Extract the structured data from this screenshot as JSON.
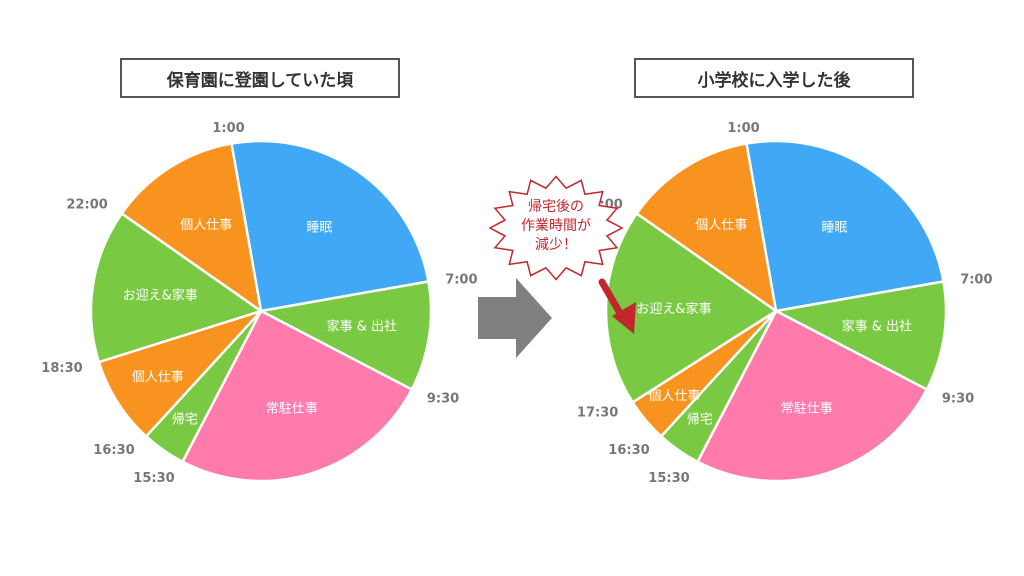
{
  "chart_data": [
    {
      "type": "pie",
      "title": "保育園に登園していた頃",
      "slices": [
        {
          "label": "睡眠",
          "start": "1:00",
          "end": "7:00",
          "hours": 6,
          "color": "#40A8F5"
        },
        {
          "label": "家事 & 出社",
          "start": "7:00",
          "end": "9:30",
          "hours": 2.5,
          "color": "#7AC943"
        },
        {
          "label": "常駐仕事",
          "start": "9:30",
          "end": "15:30",
          "hours": 6,
          "color": "#FF7BAC"
        },
        {
          "label": "帰宅",
          "start": "15:30",
          "end": "16:30",
          "hours": 1,
          "color": "#7AC943"
        },
        {
          "label": "個人仕事",
          "start": "16:30",
          "end": "18:30",
          "hours": 2,
          "color": "#F7931E"
        },
        {
          "label": "お迎え&家事",
          "start": "18:30",
          "end": "22:00",
          "hours": 3.5,
          "color": "#7AC943"
        },
        {
          "label": "個人仕事",
          "start": "22:00",
          "end": "1:00",
          "hours": 3,
          "color": "#F7931E"
        }
      ],
      "time_labels": [
        "1:00",
        "7:00",
        "9:30",
        "15:30",
        "16:30",
        "18:30",
        "22:00"
      ]
    },
    {
      "type": "pie",
      "title": "小学校に入学した後",
      "slices": [
        {
          "label": "睡眠",
          "start": "1:00",
          "end": "7:00",
          "hours": 6,
          "color": "#40A8F5"
        },
        {
          "label": "家事 & 出社",
          "start": "7:00",
          "end": "9:30",
          "hours": 2.5,
          "color": "#7AC943"
        },
        {
          "label": "常駐仕事",
          "start": "9:30",
          "end": "15:30",
          "hours": 6,
          "color": "#FF7BAC"
        },
        {
          "label": "帰宅",
          "start": "15:30",
          "end": "16:30",
          "hours": 1,
          "color": "#7AC943"
        },
        {
          "label": "個人仕事",
          "start": "16:30",
          "end": "17:30",
          "hours": 1,
          "color": "#F7931E"
        },
        {
          "label": "お迎え&家事",
          "start": "17:30",
          "end": "22:00",
          "hours": 4.5,
          "color": "#7AC943"
        },
        {
          "label": "個人仕事",
          "start": "22:00",
          "end": "1:00",
          "hours": 3,
          "color": "#F7931E"
        }
      ],
      "time_labels": [
        "1:00",
        "7:00",
        "9:30",
        "15:30",
        "16:30",
        "17:30",
        "22:00"
      ]
    }
  ],
  "callout": {
    "lines": [
      "帰宅後の",
      "作業時間が",
      "減少！"
    ],
    "text_color": "#C1272D"
  },
  "colors": {
    "arrow": "#808080",
    "callout_arrow": "#C1272D",
    "time_label": "#777777"
  }
}
